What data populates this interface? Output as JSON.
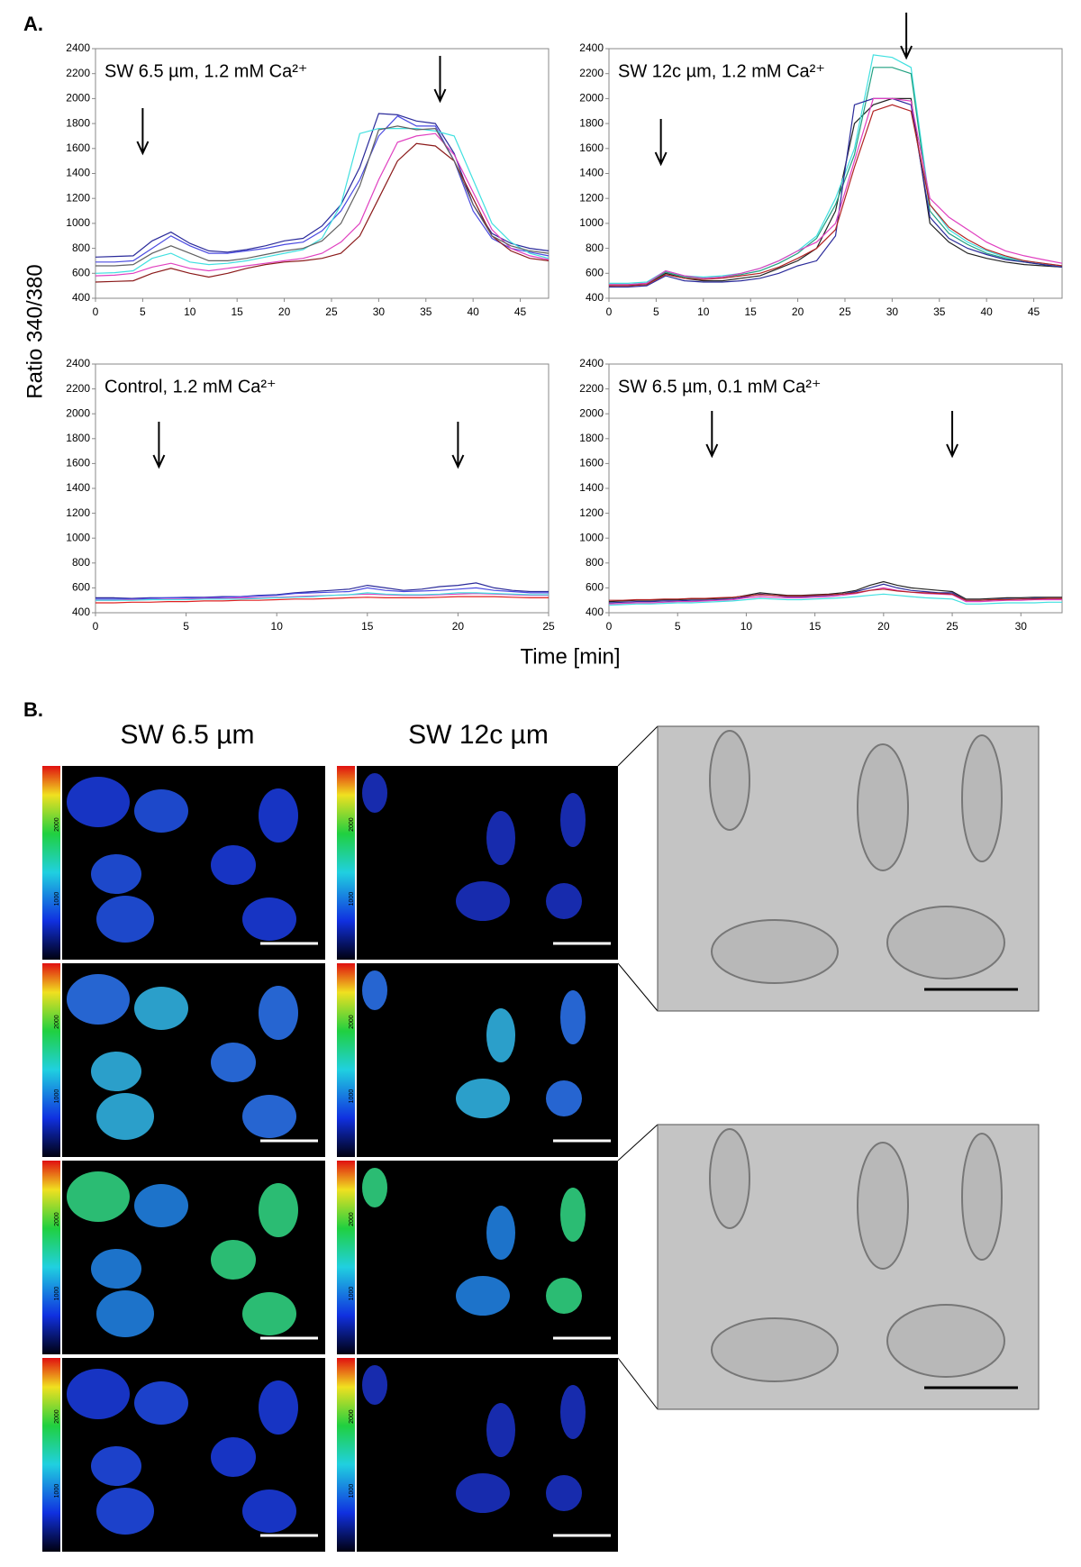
{
  "panel_a": {
    "label": "A.",
    "y_label": "Ratio 340/380",
    "x_label": "Time [min]"
  },
  "panel_b": {
    "label": "B.",
    "column_titles": [
      "SW 6.5 µm",
      "SW 12c µm"
    ],
    "colorbar_labels": [
      "2000",
      "1000"
    ]
  },
  "chart_data": [
    {
      "type": "line",
      "title": "SW 6.5 µm, 1.2 mM Ca²⁺",
      "x": [
        0,
        2,
        4,
        6,
        8,
        10,
        12,
        14,
        16,
        18,
        20,
        22,
        24,
        26,
        28,
        30,
        32,
        34,
        36,
        38,
        40,
        42,
        44,
        46,
        48
      ],
      "xlim": [
        0,
        48
      ],
      "xticks": [
        0,
        5,
        10,
        15,
        20,
        25,
        30,
        35,
        40,
        45
      ],
      "ylim": [
        400,
        2400
      ],
      "yticks": [
        400,
        600,
        800,
        1000,
        1200,
        1400,
        1600,
        1800,
        2000,
        2200,
        2400
      ],
      "arrows": [
        5,
        36.5
      ],
      "series": [
        {
          "color": "#2a2a9a",
          "values": [
            730,
            735,
            740,
            860,
            930,
            840,
            780,
            770,
            790,
            820,
            860,
            880,
            980,
            1150,
            1450,
            1880,
            1870,
            1820,
            1800,
            1560,
            1150,
            920,
            840,
            800,
            780
          ]
        },
        {
          "color": "#4a4ae0",
          "values": [
            690,
            690,
            700,
            800,
            900,
            820,
            760,
            760,
            780,
            800,
            830,
            850,
            940,
            1100,
            1350,
            1700,
            1860,
            1780,
            1780,
            1500,
            1100,
            880,
            800,
            770,
            740
          ]
        },
        {
          "color": "#40e0e0",
          "values": [
            600,
            605,
            620,
            720,
            760,
            690,
            670,
            680,
            700,
            730,
            760,
            790,
            880,
            1150,
            1720,
            1760,
            1760,
            1760,
            1740,
            1700,
            1350,
            1000,
            850,
            760,
            720
          ]
        },
        {
          "color": "#e040c0",
          "values": [
            580,
            585,
            600,
            650,
            680,
            640,
            620,
            640,
            660,
            680,
            700,
            720,
            760,
            850,
            1000,
            1350,
            1650,
            1700,
            1720,
            1550,
            1250,
            950,
            800,
            740,
            710
          ]
        },
        {
          "color": "#8b1a1a",
          "values": [
            530,
            535,
            540,
            600,
            640,
            600,
            570,
            600,
            640,
            670,
            690,
            700,
            720,
            760,
            900,
            1200,
            1500,
            1640,
            1620,
            1500,
            1200,
            900,
            780,
            720,
            700
          ]
        },
        {
          "color": "#606060",
          "values": [
            660,
            660,
            670,
            760,
            820,
            760,
            700,
            700,
            720,
            750,
            780,
            800,
            860,
            1000,
            1300,
            1750,
            1780,
            1750,
            1760,
            1500,
            1150,
            900,
            820,
            780,
            760
          ]
        }
      ]
    },
    {
      "type": "line",
      "title": "SW 12c µm, 1.2 mM Ca²⁺",
      "x": [
        0,
        2,
        4,
        6,
        8,
        10,
        12,
        14,
        16,
        18,
        20,
        22,
        24,
        26,
        28,
        30,
        32,
        34,
        36,
        38,
        40,
        42,
        44,
        46,
        48
      ],
      "xlim": [
        0,
        48
      ],
      "xticks": [
        0,
        5,
        10,
        15,
        20,
        25,
        30,
        35,
        40,
        45
      ],
      "ylim": [
        400,
        2400
      ],
      "yticks": [
        400,
        600,
        800,
        1000,
        1200,
        1400,
        1600,
        1800,
        2000,
        2200,
        2400
      ],
      "arrows": [
        5.5,
        31.5
      ],
      "series": [
        {
          "color": "#222222",
          "values": [
            500,
            505,
            510,
            600,
            560,
            540,
            540,
            560,
            580,
            640,
            700,
            800,
            1100,
            1800,
            1950,
            2000,
            2000,
            1000,
            850,
            760,
            720,
            690,
            670,
            660,
            650
          ]
        },
        {
          "color": "#40e0e0",
          "values": [
            520,
            520,
            530,
            620,
            580,
            570,
            580,
            600,
            640,
            700,
            780,
            900,
            1200,
            1600,
            2350,
            2330,
            2250,
            1150,
            950,
            850,
            780,
            730,
            700,
            680,
            660
          ]
        },
        {
          "color": "#20a080",
          "values": [
            510,
            510,
            520,
            610,
            570,
            560,
            570,
            590,
            620,
            680,
            760,
            880,
            1150,
            1550,
            2250,
            2250,
            2200,
            1100,
            920,
            830,
            760,
            720,
            690,
            670,
            650
          ]
        },
        {
          "color": "#2a2a9a",
          "values": [
            490,
            490,
            500,
            580,
            540,
            530,
            530,
            540,
            560,
            600,
            660,
            700,
            900,
            1950,
            2000,
            2000,
            1950,
            1050,
            880,
            800,
            750,
            710,
            690,
            670,
            650
          ]
        },
        {
          "color": "#e040c0",
          "values": [
            510,
            510,
            520,
            620,
            580,
            560,
            570,
            600,
            640,
            700,
            780,
            850,
            1000,
            1500,
            2000,
            2000,
            1980,
            1200,
            1050,
            950,
            850,
            780,
            740,
            710,
            680
          ]
        },
        {
          "color": "#b22222",
          "values": [
            500,
            500,
            510,
            590,
            560,
            550,
            560,
            580,
            600,
            650,
            720,
            800,
            950,
            1450,
            1900,
            1950,
            1900,
            1150,
            970,
            870,
            790,
            740,
            700,
            680,
            660
          ]
        }
      ]
    },
    {
      "type": "line",
      "title": "Control, 1.2 mM Ca²⁺",
      "x": [
        0,
        1,
        2,
        3,
        4,
        5,
        6,
        7,
        8,
        9,
        10,
        11,
        12,
        13,
        14,
        15,
        16,
        17,
        18,
        19,
        20,
        21,
        22,
        23,
        24,
        25
      ],
      "xlim": [
        0,
        25
      ],
      "xticks": [
        0,
        5,
        10,
        15,
        20,
        25
      ],
      "ylim": [
        400,
        2400
      ],
      "yticks": [
        400,
        600,
        800,
        1000,
        1200,
        1400,
        1600,
        1800,
        2000,
        2200,
        2400
      ],
      "arrows": [
        3.5,
        20
      ],
      "series": [
        {
          "color": "#2a2a9a",
          "values": [
            520,
            520,
            515,
            520,
            520,
            525,
            525,
            530,
            530,
            540,
            545,
            560,
            570,
            580,
            590,
            620,
            600,
            580,
            590,
            610,
            620,
            640,
            600,
            580,
            570,
            570
          ]
        },
        {
          "color": "#4a4ae0",
          "values": [
            510,
            510,
            510,
            515,
            520,
            520,
            520,
            525,
            530,
            535,
            540,
            555,
            560,
            565,
            570,
            600,
            580,
            570,
            575,
            580,
            590,
            600,
            580,
            570,
            560,
            560
          ]
        },
        {
          "color": "#e040c0",
          "values": [
            500,
            500,
            505,
            505,
            510,
            510,
            515,
            515,
            520,
            520,
            525,
            530,
            535,
            540,
            545,
            550,
            545,
            540,
            540,
            545,
            550,
            555,
            550,
            545,
            540,
            540
          ]
        },
        {
          "color": "#e02020",
          "values": [
            480,
            480,
            485,
            485,
            490,
            490,
            495,
            495,
            500,
            500,
            505,
            510,
            510,
            515,
            520,
            525,
            520,
            520,
            520,
            525,
            530,
            530,
            530,
            525,
            520,
            520
          ]
        },
        {
          "color": "#40e0e0",
          "values": [
            500,
            500,
            500,
            505,
            505,
            505,
            510,
            510,
            510,
            515,
            520,
            525,
            530,
            540,
            545,
            560,
            550,
            545,
            545,
            550,
            560,
            560,
            555,
            550,
            545,
            545
          ]
        }
      ]
    },
    {
      "type": "line",
      "title": "SW 6.5 µm, 0.1 mM Ca²⁺",
      "x": [
        0,
        1,
        2,
        3,
        4,
        5,
        6,
        7,
        8,
        9,
        10,
        11,
        12,
        13,
        14,
        15,
        16,
        17,
        18,
        19,
        20,
        21,
        22,
        23,
        24,
        25,
        26,
        27,
        28,
        29,
        30,
        31,
        32,
        33
      ],
      "xlim": [
        0,
        33
      ],
      "xticks": [
        0,
        5,
        10,
        15,
        20,
        25,
        30
      ],
      "ylim": [
        400,
        2400
      ],
      "yticks": [
        400,
        600,
        800,
        1000,
        1200,
        1400,
        1600,
        1800,
        2000,
        2200,
        2400
      ],
      "arrows": [
        7.5,
        25
      ],
      "series": [
        {
          "color": "#222222",
          "values": [
            490,
            495,
            500,
            500,
            505,
            505,
            510,
            510,
            515,
            520,
            540,
            560,
            550,
            540,
            540,
            545,
            550,
            560,
            580,
            620,
            650,
            620,
            600,
            590,
            580,
            570,
            510,
            510,
            515,
            520,
            520,
            525,
            525,
            525
          ]
        },
        {
          "color": "#2a2a9a",
          "values": [
            480,
            485,
            490,
            490,
            495,
            495,
            500,
            500,
            505,
            510,
            530,
            550,
            540,
            530,
            530,
            535,
            540,
            550,
            570,
            600,
            630,
            600,
            580,
            570,
            560,
            560,
            500,
            500,
            505,
            510,
            510,
            515,
            515,
            515
          ]
        },
        {
          "color": "#e040c0",
          "values": [
            470,
            475,
            480,
            480,
            485,
            490,
            490,
            495,
            500,
            505,
            520,
            530,
            525,
            520,
            520,
            525,
            530,
            540,
            555,
            580,
            600,
            580,
            565,
            555,
            550,
            545,
            490,
            490,
            495,
            500,
            500,
            505,
            505,
            505
          ]
        },
        {
          "color": "#b22222",
          "values": [
            500,
            500,
            505,
            505,
            510,
            510,
            515,
            515,
            520,
            525,
            535,
            545,
            540,
            535,
            535,
            540,
            545,
            550,
            560,
            580,
            590,
            575,
            565,
            560,
            555,
            550,
            500,
            500,
            505,
            505,
            510,
            510,
            515,
            515
          ]
        },
        {
          "color": "#40e0e0",
          "values": [
            460,
            465,
            470,
            470,
            475,
            480,
            480,
            485,
            490,
            495,
            505,
            515,
            510,
            505,
            505,
            510,
            515,
            520,
            530,
            540,
            550,
            540,
            530,
            520,
            515,
            510,
            470,
            470,
            475,
            480,
            480,
            480,
            485,
            485
          ]
        }
      ]
    }
  ]
}
